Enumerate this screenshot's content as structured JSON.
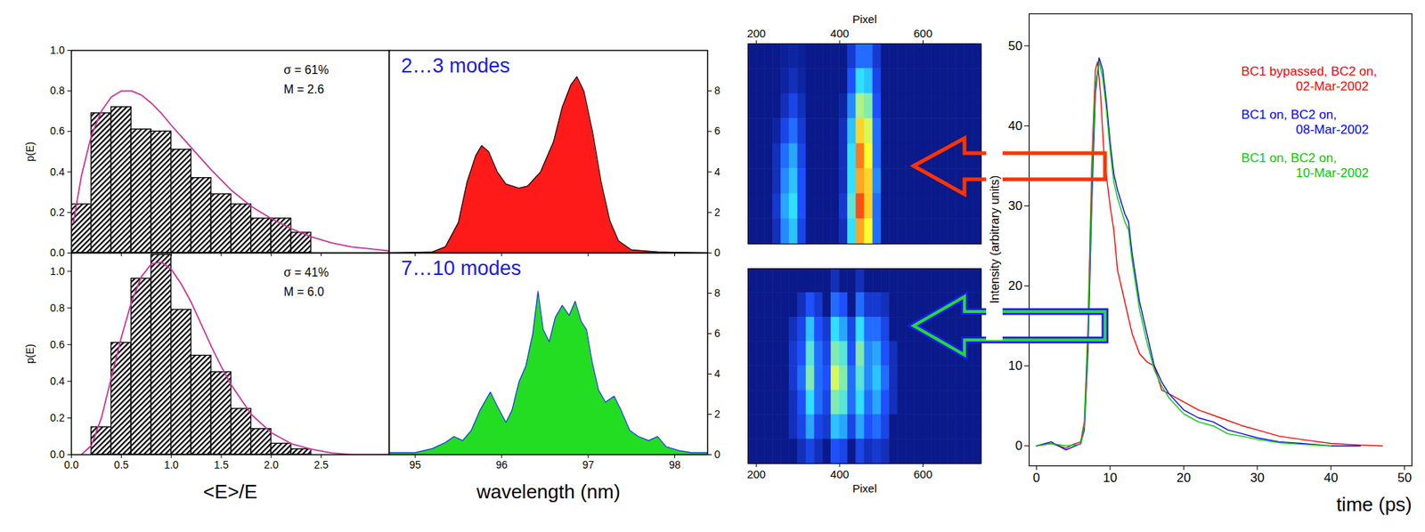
{
  "chart_data": [
    {
      "type": "histogram",
      "ylabel": "p(E)",
      "bins": [
        0,
        0.2,
        0.4,
        0.6,
        0.8,
        1.0,
        1.2,
        1.4,
        1.6,
        1.8,
        2.0,
        2.2,
        2.4
      ],
      "values": [
        0.24,
        0.69,
        0.72,
        0.61,
        0.6,
        0.51,
        0.37,
        0.29,
        0.24,
        0.17,
        0.17,
        0.1
      ],
      "fit": {
        "color": "#cc3399",
        "x": [
          0.02,
          0.1,
          0.2,
          0.3,
          0.4,
          0.5,
          0.6,
          0.7,
          0.8,
          0.9,
          1.0,
          1.2,
          1.4,
          1.6,
          1.8,
          2.0,
          2.2,
          2.4,
          2.6,
          2.8,
          3.0,
          3.18
        ],
        "values": [
          0.15,
          0.38,
          0.58,
          0.7,
          0.77,
          0.8,
          0.8,
          0.78,
          0.74,
          0.69,
          0.63,
          0.52,
          0.41,
          0.31,
          0.23,
          0.17,
          0.12,
          0.08,
          0.05,
          0.03,
          0.02,
          0.01
        ]
      },
      "annotations": [
        "σ = 61%",
        "M = 2.6"
      ],
      "xlim": [
        0,
        3.18
      ],
      "ylim": [
        0,
        1.0
      ],
      "xticks": [
        0,
        0.5,
        1,
        1.5,
        2,
        2.5
      ],
      "yticks": [
        {
          "value": 0,
          "label": "0.0"
        },
        {
          "value": 0.2,
          "label": "0.2"
        },
        {
          "value": 0.4,
          "label": "0.4"
        },
        {
          "value": 0.6,
          "label": "0.6"
        },
        {
          "value": 0.8,
          "label": "0.8"
        },
        {
          "value": 1.0,
          "label": "1.0"
        }
      ],
      "tick_labels": "y"
    },
    {
      "type": "histogram",
      "ylabel": "p(E)",
      "xlabel": "<E>/E",
      "bins": [
        0.2,
        0.4,
        0.6,
        0.8,
        1.0,
        1.2,
        1.4,
        1.6,
        1.8,
        2.0,
        2.2,
        2.4
      ],
      "values": [
        0.15,
        0.61,
        0.96,
        1.09,
        0.79,
        0.54,
        0.45,
        0.25,
        0.14,
        0.06,
        0.03
      ],
      "fit": {
        "color": "#cc3399",
        "x": [
          0.1,
          0.2,
          0.3,
          0.4,
          0.5,
          0.6,
          0.7,
          0.8,
          0.9,
          1.0,
          1.1,
          1.2,
          1.3,
          1.4,
          1.5,
          1.6,
          1.8,
          2.0,
          2.2,
          2.4,
          2.6,
          2.8,
          3.18
        ],
        "values": [
          0,
          0.05,
          0.2,
          0.42,
          0.64,
          0.83,
          0.97,
          1.04,
          1.05,
          1.01,
          0.93,
          0.83,
          0.71,
          0.59,
          0.48,
          0.38,
          0.22,
          0.12,
          0.06,
          0.03,
          0.01,
          0,
          0
        ]
      },
      "annotations": [
        "σ = 41%",
        "M = 6.0"
      ],
      "xlim": [
        0,
        3.18
      ],
      "ylim": [
        0,
        1.1
      ],
      "xticks": [
        {
          "value": 0,
          "label": "0.0"
        },
        {
          "value": 0.5,
          "label": "0.5"
        },
        {
          "value": 1,
          "label": "1.0"
        },
        {
          "value": 1.5,
          "label": "1.5"
        },
        {
          "value": 2,
          "label": "2.0"
        },
        {
          "value": 2.5,
          "label": "2.5"
        }
      ],
      "yticks": [
        {
          "value": 0,
          "label": "0.0"
        },
        {
          "value": 0.2,
          "label": "0.2"
        },
        {
          "value": 0.4,
          "label": "0.4"
        },
        {
          "value": 0.6,
          "label": "0.6"
        },
        {
          "value": 0.8,
          "label": "0.8"
        },
        {
          "value": 1.0,
          "label": "1.0"
        }
      ],
      "tick_labels": true
    },
    {
      "type": "area",
      "color": "#ff1a1a",
      "annotations": [
        "2…3 modes"
      ],
      "x": [
        94.7,
        95.2,
        95.35,
        95.5,
        95.6,
        95.7,
        95.77,
        95.85,
        95.95,
        96.05,
        96.2,
        96.3,
        96.45,
        96.6,
        96.7,
        96.8,
        96.87,
        96.95,
        97.05,
        97.15,
        97.25,
        97.35,
        97.5,
        97.8,
        98.38
      ],
      "values": [
        0,
        0.05,
        0.3,
        1.5,
        3.5,
        4.8,
        5.3,
        5.0,
        4.0,
        3.4,
        3.2,
        3.3,
        4.0,
        5.5,
        7.2,
        8.3,
        8.7,
        8.0,
        6.0,
        3.5,
        1.6,
        0.6,
        0.15,
        0.05,
        0
      ],
      "xlim": [
        94.7,
        98.38
      ],
      "ylim": [
        0,
        10
      ],
      "xticks": [
        95,
        96,
        97,
        98
      ],
      "yticks": [
        0,
        2,
        4,
        6,
        8
      ],
      "tick_labels": "y"
    },
    {
      "type": "area",
      "color": "#22dd22",
      "annotations": [
        "7…10 modes"
      ],
      "xlabel": "wavelength (nm)",
      "x": [
        94.7,
        95.0,
        95.2,
        95.35,
        95.45,
        95.55,
        95.65,
        95.75,
        95.87,
        95.95,
        96.05,
        96.12,
        96.2,
        96.28,
        96.36,
        96.42,
        96.48,
        96.55,
        96.62,
        96.7,
        96.78,
        96.85,
        96.92,
        96.98,
        97.05,
        97.12,
        97.2,
        97.3,
        97.38,
        97.48,
        97.58,
        97.7,
        97.8,
        97.9,
        98.05,
        98.2,
        98.38
      ],
      "values": [
        0.1,
        0.1,
        0.3,
        0.6,
        0.9,
        0.7,
        1.2,
        2.2,
        3.1,
        2.4,
        1.6,
        2.2,
        3.6,
        4.4,
        6.0,
        8.1,
        6.2,
        5.6,
        6.8,
        7.4,
        6.9,
        7.6,
        6.6,
        6.2,
        4.5,
        3.2,
        2.6,
        2.9,
        2.2,
        1.2,
        0.9,
        0.7,
        0.9,
        0.4,
        0.2,
        0.1,
        0.1
      ],
      "xlim": [
        94.7,
        98.38
      ],
      "ylim": [
        0,
        10
      ],
      "xticks": [
        95,
        96,
        97,
        98
      ],
      "yticks": [
        0,
        2,
        4,
        6,
        8
      ],
      "tick_labels": true
    },
    {
      "type": "heatmap",
      "xlabel": "Pixel",
      "x_bins": [
        180,
        200,
        220,
        240,
        260,
        280,
        300,
        320,
        340,
        360,
        380,
        400,
        420,
        440,
        460,
        480,
        500,
        520,
        540,
        560,
        580,
        600,
        620,
        640,
        660,
        680,
        700,
        720,
        740
      ],
      "cells": [
        [
          0,
          0,
          0,
          0,
          0.03,
          0.05,
          0.03,
          0,
          0,
          0,
          0,
          0,
          0.15,
          0.3,
          0.3,
          0.15,
          0,
          0,
          0,
          0,
          0,
          0,
          0,
          0,
          0,
          0,
          0,
          0
        ],
        [
          0,
          0,
          0,
          0,
          0.05,
          0.1,
          0.05,
          0,
          0,
          0,
          0,
          0,
          0.25,
          0.5,
          0.45,
          0.2,
          0,
          0,
          0,
          0,
          0,
          0,
          0,
          0,
          0,
          0,
          0,
          0
        ],
        [
          0,
          0,
          0,
          0,
          0.1,
          0.2,
          0.1,
          0,
          0,
          0,
          0,
          0.05,
          0.35,
          0.65,
          0.6,
          0.25,
          0,
          0,
          0,
          0,
          0,
          0,
          0,
          0,
          0,
          0,
          0,
          0
        ],
        [
          0,
          0,
          0,
          0.05,
          0.2,
          0.3,
          0.15,
          0,
          0,
          0,
          0,
          0.1,
          0.45,
          0.8,
          0.7,
          0.3,
          0,
          0,
          0,
          0,
          0,
          0,
          0,
          0,
          0,
          0,
          0,
          0
        ],
        [
          0,
          0,
          0,
          0.1,
          0.3,
          0.4,
          0.2,
          0,
          0,
          0,
          0,
          0.1,
          0.5,
          0.9,
          0.75,
          0.3,
          0,
          0,
          0,
          0,
          0,
          0,
          0,
          0,
          0,
          0,
          0,
          0
        ],
        [
          0,
          0,
          0,
          0.1,
          0.35,
          0.45,
          0.25,
          0,
          0,
          0,
          0,
          0.1,
          0.5,
          0.85,
          0.8,
          0.35,
          0,
          0,
          0,
          0,
          0,
          0,
          0,
          0,
          0,
          0,
          0,
          0
        ],
        [
          0,
          0,
          0,
          0.15,
          0.4,
          0.5,
          0.25,
          0,
          0,
          0,
          0,
          0.15,
          0.55,
          0.95,
          0.8,
          0.3,
          0,
          0,
          0,
          0,
          0,
          0,
          0,
          0,
          0,
          0,
          0,
          0
        ],
        [
          0,
          0,
          0,
          0.1,
          0.35,
          0.45,
          0.2,
          0,
          0,
          0,
          0,
          0.1,
          0.5,
          0.85,
          0.75,
          0.3,
          0,
          0,
          0,
          0,
          0,
          0,
          0,
          0,
          0,
          0,
          0,
          0
        ]
      ],
      "zlim": [
        0,
        1
      ],
      "xlim": [
        180,
        740
      ],
      "xticks": [
        200,
        400,
        600
      ],
      "tick_labels": "x"
    },
    {
      "type": "heatmap",
      "xlabel": "Pixel",
      "x_bins": [
        180,
        200,
        220,
        240,
        260,
        280,
        300,
        320,
        340,
        360,
        380,
        400,
        420,
        440,
        460,
        480,
        500,
        520,
        540,
        560,
        580,
        600,
        620,
        640,
        660,
        680,
        700,
        720,
        740
      ],
      "cells": [
        [
          0,
          0,
          0,
          0,
          0,
          0,
          0,
          0,
          0,
          0,
          0.1,
          0,
          0,
          0.1,
          0,
          0,
          0,
          0,
          0,
          0,
          0,
          0,
          0,
          0,
          0,
          0,
          0,
          0
        ],
        [
          0,
          0,
          0,
          0,
          0,
          0,
          0.1,
          0.25,
          0.15,
          0,
          0.3,
          0.25,
          0,
          0.3,
          0.15,
          0.15,
          0.1,
          0,
          0,
          0,
          0,
          0,
          0,
          0,
          0,
          0,
          0,
          0
        ],
        [
          0,
          0,
          0,
          0,
          0,
          0.1,
          0.2,
          0.45,
          0.25,
          0.15,
          0.5,
          0.4,
          0.2,
          0.5,
          0.3,
          0.3,
          0.2,
          0,
          0,
          0,
          0,
          0,
          0,
          0,
          0,
          0,
          0,
          0
        ],
        [
          0,
          0,
          0,
          0,
          0,
          0.15,
          0.25,
          0.55,
          0.3,
          0.2,
          0.6,
          0.55,
          0.25,
          0.6,
          0.35,
          0.4,
          0.25,
          0.1,
          0,
          0,
          0,
          0,
          0,
          0,
          0,
          0,
          0,
          0
        ],
        [
          0,
          0,
          0,
          0,
          0,
          0.15,
          0.3,
          0.6,
          0.3,
          0.25,
          0.7,
          0.6,
          0.3,
          0.55,
          0.35,
          0.45,
          0.3,
          0.1,
          0,
          0,
          0,
          0,
          0,
          0,
          0,
          0,
          0,
          0
        ],
        [
          0,
          0,
          0,
          0,
          0,
          0.1,
          0.25,
          0.5,
          0.3,
          0.2,
          0.6,
          0.55,
          0.3,
          0.5,
          0.3,
          0.4,
          0.25,
          0.1,
          0,
          0,
          0,
          0,
          0,
          0,
          0,
          0,
          0,
          0
        ],
        [
          0,
          0,
          0,
          0,
          0,
          0.1,
          0.2,
          0.4,
          0.2,
          0.15,
          0.45,
          0.4,
          0.2,
          0.4,
          0.25,
          0.3,
          0.2,
          0,
          0,
          0,
          0,
          0,
          0,
          0,
          0,
          0,
          0,
          0
        ],
        [
          0,
          0,
          0,
          0,
          0,
          0,
          0.1,
          0.2,
          0.1,
          0,
          0.25,
          0.2,
          0,
          0.2,
          0.1,
          0.15,
          0.1,
          0,
          0,
          0,
          0,
          0,
          0,
          0,
          0,
          0,
          0,
          0
        ]
      ],
      "zlim": [
        0,
        1
      ],
      "xlim": [
        180,
        740
      ],
      "xticks": [
        200,
        400,
        600
      ],
      "tick_labels": "x"
    },
    {
      "type": "line",
      "xlabel": "time (ps)",
      "ylabel": "Intensity (arbitrary units)",
      "series": [
        {
          "name": "BC1 bypassed, BC2 on, 02-Mar-2002",
          "color": "#ff0000",
          "x": [
            0,
            2,
            4,
            5,
            6,
            6.5,
            7,
            7.5,
            8,
            8.3,
            8.7,
            9.2,
            10,
            10.5,
            11,
            12,
            13,
            14,
            15,
            16,
            17,
            18,
            20,
            22,
            25,
            28,
            30,
            33,
            36,
            40,
            44,
            47
          ],
          "values": [
            0,
            0.3,
            -0.3,
            0.2,
            0.5,
            3,
            15,
            35,
            47,
            48,
            44,
            36,
            30,
            27,
            22,
            18,
            14,
            11.5,
            10.5,
            10,
            7,
            6.5,
            5.5,
            4.5,
            3.5,
            2.5,
            2,
            1.2,
            0.8,
            0.3,
            0.1,
            0
          ]
        },
        {
          "name": "BC1 on, BC2 on, 08-Mar-2002",
          "color": "#0000ff",
          "x": [
            0,
            2,
            4,
            6,
            6.5,
            7,
            7.5,
            8,
            8.5,
            9,
            9.5,
            10,
            10.5,
            11,
            12,
            12.5,
            13,
            14,
            15,
            16,
            17,
            18,
            20,
            22,
            24,
            26,
            28,
            30,
            33,
            36,
            40,
            44
          ],
          "values": [
            0,
            0.5,
            -0.5,
            0.3,
            2,
            12,
            30,
            44,
            48.5,
            47,
            43,
            38,
            34,
            32,
            29,
            28,
            24,
            18,
            14,
            10,
            8,
            6.5,
            4.5,
            3.5,
            3,
            2,
            1.5,
            1,
            0.5,
            0.3,
            0,
            0
          ]
        },
        {
          "name": "BC1 on, BC2 on, 10-Mar-2002",
          "color": "#00cc00",
          "x": [
            0,
            2,
            4,
            6,
            6.5,
            7,
            7.5,
            8,
            8.5,
            9,
            9.5,
            10,
            10.5,
            11,
            12,
            12.5,
            13,
            14,
            15,
            16,
            17,
            18,
            20,
            22,
            24,
            26,
            28,
            30,
            33,
            36,
            40
          ],
          "values": [
            0,
            0.3,
            0,
            0.2,
            2.5,
            14,
            33,
            45,
            48,
            46,
            42,
            37,
            33,
            31,
            28,
            27,
            23,
            17,
            13,
            9.5,
            7.5,
            6,
            4,
            3,
            2.5,
            1.5,
            1.2,
            0.8,
            0.4,
            0.2,
            0
          ]
        }
      ],
      "xlim": [
        -1,
        51
      ],
      "ylim": [
        -2.5,
        54
      ],
      "xticks": [
        0,
        10,
        20,
        30,
        40,
        50
      ],
      "yticks": [
        0,
        10,
        20,
        30,
        40,
        50
      ],
      "legend": "top-right"
    }
  ]
}
